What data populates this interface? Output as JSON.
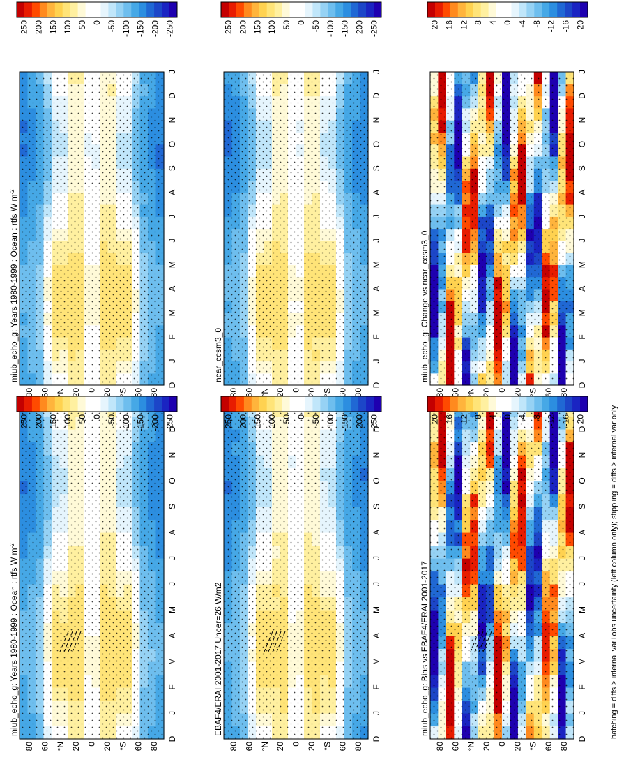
{
  "figure": {
    "footer": "hatching = diffs > internal var+obs uncertainty (left column only); stippling = diffs > internal var only",
    "orientation": "rotated-90-clockwise"
  },
  "colorbars": {
    "flux": {
      "labels": [
        "250",
        "200",
        "150",
        "100",
        "50",
        "0",
        "-50",
        "-100",
        "-150",
        "-200",
        "-250"
      ],
      "colors": [
        "#c40000",
        "#e81c00",
        "#ff4a00",
        "#ff8a1e",
        "#ffb43c",
        "#ffd250",
        "#ffe478",
        "#fff0a0",
        "#fffad8",
        "#ffffff",
        "#ffffff",
        "#e6f5fd",
        "#c0e6fa",
        "#96d2f4",
        "#6ebeee",
        "#46a8e6",
        "#2c8ee0",
        "#2068d4",
        "#1c46c8",
        "#1a24c2",
        "#1e00b0"
      ]
    },
    "diff": {
      "labels": [
        "20",
        "16",
        "12",
        "8",
        "4",
        "0",
        "-4",
        "-8",
        "-12",
        "-16",
        "-20"
      ],
      "colors": [
        "#c40000",
        "#e81c00",
        "#ff4a00",
        "#ff8a1e",
        "#ffb43c",
        "#ffd250",
        "#ffe478",
        "#fff0a0",
        "#fffad8",
        "#ffffff",
        "#ffffff",
        "#e6f5fd",
        "#c0e6fa",
        "#96d2f4",
        "#6ebeee",
        "#46a8e6",
        "#2c8ee0",
        "#2068d4",
        "#1c46c8",
        "#1a24c2",
        "#1e00b0"
      ]
    }
  },
  "axes": {
    "time_ticks": [
      "D",
      "J",
      "F",
      "M",
      "A",
      "M",
      "J",
      "J",
      "A",
      "S",
      "O",
      "N",
      "D",
      "J"
    ],
    "lat_ticks": [
      "80",
      "60",
      "°N",
      "20",
      "0",
      "20",
      "°S",
      "60",
      "80"
    ]
  },
  "panels": [
    {
      "id": "left-top",
      "title": "miub_echo_g: Years 1980-1999 : Ocean : rtfs W m",
      "title_sup": "-2",
      "scale": "flux",
      "kind": "clim",
      "hatch": true,
      "seed": 3
    },
    {
      "id": "left-mid",
      "title": "EBAF4/ERAI 2001-2017 Uncer=26 W/m2",
      "title_sup": "",
      "scale": "flux",
      "kind": "clim",
      "hatch": true,
      "seed": 5
    },
    {
      "id": "left-bot",
      "title": "miub_echo_g: Bias vs EBAF4/ERAI 2001-2017",
      "title_sup": "",
      "scale": "diff",
      "kind": "diff",
      "hatch": true,
      "seed": 7
    },
    {
      "id": "right-top",
      "title": "miub_echo_g: Years 1980-1999 : Ocean : rtfs W m",
      "title_sup": "-2",
      "scale": "flux",
      "kind": "clim",
      "hatch": false,
      "seed": 11
    },
    {
      "id": "right-mid",
      "title": "ncar_ccsm3_0",
      "title_sup": "",
      "scale": "flux",
      "kind": "clim",
      "hatch": false,
      "seed": 13
    },
    {
      "id": "right-bot",
      "title": "miub_echo_g: Change vs ncar_ccsm3_0",
      "title_sup": "",
      "scale": "diff",
      "kind": "diff",
      "hatch": false,
      "seed": 17
    }
  ],
  "chart_data": [
    {
      "type": "heatmap",
      "title": "miub_echo_g: Years 1980-1999 : Ocean : rtfs W m-2",
      "xlabel": "",
      "ylabel": "",
      "x": [
        "D",
        "J",
        "F",
        "M",
        "A",
        "M",
        "J",
        "J",
        "A",
        "S",
        "O",
        "N",
        "D",
        "J"
      ],
      "y": [
        "80",
        "60",
        "°N",
        "20",
        "0",
        "20",
        "°S",
        "60",
        "80"
      ],
      "clim": [
        -250,
        250
      ],
      "latitude_profile": {
        "lat": [
          80,
          60,
          40,
          20,
          0,
          -20,
          -40,
          -60,
          -80
        ],
        "values": [
          -80,
          -40,
          60,
          70,
          10,
          60,
          10,
          -120,
          -120
        ]
      }
    },
    {
      "type": "heatmap",
      "title": "EBAF4/ERAI 2001-2017 Uncer=26 W/m2",
      "xlabel": "",
      "ylabel": "",
      "x": [
        "D",
        "J",
        "F",
        "M",
        "A",
        "M",
        "J",
        "J",
        "A",
        "S",
        "O",
        "N",
        "D",
        "J"
      ],
      "y": [
        "80",
        "60",
        "°N",
        "20",
        "0",
        "20",
        "°S",
        "60",
        "80"
      ],
      "clim": [
        -250,
        250
      ],
      "latitude_profile": {
        "lat": [
          80,
          60,
          40,
          20,
          0,
          -20,
          -40,
          -60,
          -80
        ],
        "values": [
          -90,
          -50,
          50,
          70,
          20,
          70,
          20,
          -110,
          -110
        ]
      }
    },
    {
      "type": "heatmap",
      "title": "miub_echo_g: Bias vs EBAF4/ERAI 2001-2017",
      "xlabel": "",
      "ylabel": "",
      "x": [
        "D",
        "J",
        "F",
        "M",
        "A",
        "M",
        "J",
        "J",
        "A",
        "S",
        "O",
        "N",
        "D",
        "J"
      ],
      "y": [
        "80",
        "60",
        "°N",
        "20",
        "0",
        "20",
        "°S",
        "60",
        "80"
      ],
      "clim": [
        -20,
        20
      ]
    },
    {
      "type": "heatmap",
      "title": "miub_echo_g: Years 1980-1999 : Ocean : rtfs W m-2",
      "xlabel": "",
      "ylabel": "",
      "x": [
        "D",
        "J",
        "F",
        "M",
        "A",
        "M",
        "J",
        "J",
        "A",
        "S",
        "O",
        "N",
        "D",
        "J"
      ],
      "y": [
        "80",
        "60",
        "°N",
        "20",
        "0",
        "20",
        "°S",
        "60",
        "80"
      ],
      "clim": [
        -250,
        250
      ]
    },
    {
      "type": "heatmap",
      "title": "ncar_ccsm3_0",
      "xlabel": "",
      "ylabel": "",
      "x": [
        "D",
        "J",
        "F",
        "M",
        "A",
        "M",
        "J",
        "J",
        "A",
        "S",
        "O",
        "N",
        "D",
        "J"
      ],
      "y": [
        "80",
        "60",
        "°N",
        "20",
        "0",
        "20",
        "°S",
        "60",
        "80"
      ],
      "clim": [
        -250,
        250
      ]
    },
    {
      "type": "heatmap",
      "title": "miub_echo_g: Change vs ncar_ccsm3_0",
      "xlabel": "",
      "ylabel": "",
      "x": [
        "D",
        "J",
        "F",
        "M",
        "A",
        "M",
        "J",
        "J",
        "A",
        "S",
        "O",
        "N",
        "D",
        "J"
      ],
      "y": [
        "80",
        "60",
        "°N",
        "20",
        "0",
        "20",
        "°S",
        "60",
        "80"
      ],
      "clim": [
        -20,
        20
      ]
    }
  ]
}
